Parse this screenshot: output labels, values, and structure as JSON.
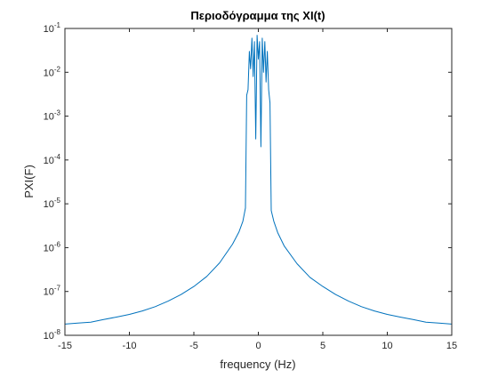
{
  "chart_data": {
    "type": "line",
    "title": "Περιοδόγραμμα της XI(t)",
    "xlabel": "frequency (Hz)",
    "ylabel": "PXI(F)",
    "xlim": [
      -15,
      15
    ],
    "ylim": [
      1e-08,
      0.1
    ],
    "yscale": "log",
    "grid": false,
    "x_ticks": [
      -15,
      -10,
      -5,
      0,
      5,
      10,
      15
    ],
    "x_tick_labels": [
      "-15",
      "-10",
      "-5",
      "0",
      "5",
      "10",
      "15"
    ],
    "y_ticks": [
      1e-08,
      1e-07,
      1e-06,
      1e-05,
      0.0001,
      0.001,
      0.01,
      0.1
    ],
    "y_tick_labels": [
      {
        "base": "10",
        "exp": "-8"
      },
      {
        "base": "10",
        "exp": "-7"
      },
      {
        "base": "10",
        "exp": "-6"
      },
      {
        "base": "10",
        "exp": "-5"
      },
      {
        "base": "10",
        "exp": "-4"
      },
      {
        "base": "10",
        "exp": "-3"
      },
      {
        "base": "10",
        "exp": "-2"
      },
      {
        "base": "10",
        "exp": "-1"
      }
    ],
    "series": [
      {
        "color": "#0072BD",
        "x": [
          -15,
          -14,
          -13,
          -12,
          -11,
          -10,
          -9,
          -8,
          -7,
          -6,
          -5,
          -4,
          -3,
          -2,
          -1.5,
          -1.2,
          -1.0,
          -0.9,
          -0.8,
          -0.7,
          -0.6,
          -0.5,
          -0.4,
          -0.3,
          -0.2,
          -0.1,
          0,
          0.1,
          0.2,
          0.3,
          0.4,
          0.5,
          0.6,
          0.7,
          0.8,
          0.9,
          1.0,
          1.2,
          1.5,
          2,
          3,
          4,
          5,
          6,
          7,
          8,
          9,
          10,
          11,
          12,
          13,
          14,
          15
        ],
        "y": [
          1.8e-08,
          1.9e-08,
          2e-08,
          2.3e-08,
          2.6e-08,
          3e-08,
          3.6e-08,
          4.5e-08,
          6e-08,
          8.5e-08,
          1.3e-07,
          2.2e-07,
          4.5e-07,
          1.2e-06,
          2.3e-06,
          4e-06,
          8e-06,
          0.003,
          0.004,
          0.03,
          0.012,
          0.06,
          0.008,
          0.05,
          0.0003,
          0.07,
          0.02,
          0.05,
          0.0002,
          0.06,
          0.01,
          0.05,
          0.006,
          0.03,
          0.004,
          0.002,
          7e-06,
          4e-06,
          2.2e-06,
          1.1e-06,
          4.3e-07,
          2.1e-07,
          1.3e-07,
          8.5e-08,
          6e-08,
          4.5e-08,
          3.6e-08,
          3e-08,
          2.6e-08,
          2.3e-08,
          2e-08,
          1.9e-08,
          1.8e-08
        ]
      }
    ]
  }
}
